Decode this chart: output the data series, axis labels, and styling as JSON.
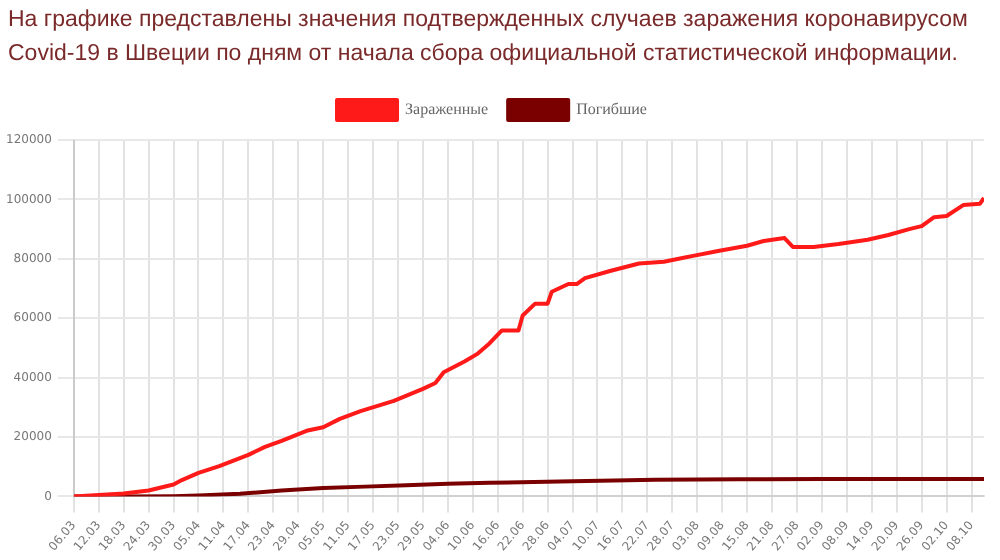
{
  "chart_data": {
    "type": "line",
    "title": "На графике представлены значения подтвержденных случаев заражения коронавирусом Covid-19 в Швеции по дням от начала сбора официальной статистической информации.",
    "series": [
      {
        "name": "Зараженные",
        "color": "#ff1a1a",
        "x": [
          "--03-06",
          "--03-12",
          "--03-18",
          "--03-24",
          "--03-30",
          "--04-01",
          "--04-05",
          "--04-10",
          "--04-17",
          "--04-21",
          "--04-25",
          "--05-01",
          "--05-05",
          "--05-09",
          "--05-14",
          "--05-22",
          "--05-29",
          "--06-01",
          "--06-03",
          "--06-08",
          "--06-11",
          "--06-14",
          "--06-17",
          "--06-21",
          "--06-22",
          "--06-25",
          "--06-28",
          "--06-29",
          "--07-03",
          "--07-05",
          "--07-07",
          "--07-13",
          "--07-20",
          "--07-26",
          "--08-02",
          "--08-08",
          "--08-15",
          "--08-19",
          "--08-24",
          "--08-26",
          "--08-31",
          "--09-06",
          "--09-13",
          "--09-18",
          "--09-23",
          "--09-26",
          "--09-29",
          "--10-02",
          "--10-06",
          "--10-10",
          "--10-11"
        ],
        "values": [
          0,
          500,
          1000,
          2000,
          4000,
          5500,
          7900,
          10200,
          14000,
          16700,
          18700,
          22100,
          23300,
          26100,
          28700,
          32200,
          36200,
          38200,
          41800,
          45400,
          47900,
          51500,
          55900,
          55900,
          60900,
          64900,
          64900,
          68900,
          71500,
          71500,
          73500,
          75900,
          78400,
          79000,
          81000,
          82600,
          84400,
          86000,
          87000,
          84000,
          84000,
          85000,
          86400,
          88000,
          90000,
          91000,
          94000,
          94400,
          98100,
          98500,
          100500
        ]
      },
      {
        "name": "Погибшие",
        "color": "#7a0000",
        "x": [
          "--03-06",
          "--03-18",
          "--03-30",
          "--04-05",
          "--04-15",
          "--04-25",
          "--05-05",
          "--05-15",
          "--05-25",
          "--06-04",
          "--06-14",
          "--07-04",
          "--07-24",
          "--08-13",
          "--09-02",
          "--09-22",
          "--10-11"
        ],
        "values": [
          0,
          10,
          100,
          300,
          900,
          2000,
          2800,
          3300,
          3800,
          4300,
          4600,
          5100,
          5600,
          5800,
          5850,
          5890,
          5900
        ]
      }
    ],
    "xlim": [
      "--03-06",
      "--10-11"
    ],
    "xticks": [
      {
        "value": "--03-06",
        "label": "06.03"
      },
      {
        "value": "--03-12",
        "label": "12.03"
      },
      {
        "value": "--03-18",
        "label": "18.03"
      },
      {
        "value": "--03-24",
        "label": "24.03"
      },
      {
        "value": "--03-30",
        "label": "30.03"
      },
      {
        "value": "--04-05",
        "label": "05.04"
      },
      {
        "value": "--04-11",
        "label": "11.04"
      },
      {
        "value": "--04-17",
        "label": "17.04"
      },
      {
        "value": "--04-23",
        "label": "23.04"
      },
      {
        "value": "--04-29",
        "label": "29.04"
      },
      {
        "value": "--05-05",
        "label": "05.05"
      },
      {
        "value": "--05-11",
        "label": "11.05"
      },
      {
        "value": "--05-17",
        "label": "17.05"
      },
      {
        "value": "--05-23",
        "label": "23.05"
      },
      {
        "value": "--05-29",
        "label": "29.05"
      },
      {
        "value": "--06-04",
        "label": "04.06"
      },
      {
        "value": "--06-10",
        "label": "10.06"
      },
      {
        "value": "--06-16",
        "label": "16.06"
      },
      {
        "value": "--06-22",
        "label": "22.06"
      },
      {
        "value": "--06-28",
        "label": "28.06"
      },
      {
        "value": "--07-04",
        "label": "04.07"
      },
      {
        "value": "--07-10",
        "label": "10.07"
      },
      {
        "value": "--07-16",
        "label": "16.07"
      },
      {
        "value": "--07-22",
        "label": "22.07"
      },
      {
        "value": "--07-28",
        "label": "28.07"
      },
      {
        "value": "--08-03",
        "label": "03.08"
      },
      {
        "value": "--08-09",
        "label": "09.08"
      },
      {
        "value": "--08-15",
        "label": "15.08"
      },
      {
        "value": "--08-21",
        "label": "21.08"
      },
      {
        "value": "--08-27",
        "label": "27.08"
      },
      {
        "value": "--09-02",
        "label": "02.09"
      },
      {
        "value": "--09-08",
        "label": "08.09"
      },
      {
        "value": "--09-14",
        "label": "14.09"
      },
      {
        "value": "--09-20",
        "label": "20.09"
      },
      {
        "value": "--09-26",
        "label": "26.09"
      },
      {
        "value": "--10-02",
        "label": "02.10"
      },
      {
        "value": "--10-08",
        "label": "08.10"
      }
    ],
    "ylim": [
      0,
      120000
    ],
    "yticks": [
      0,
      20000,
      40000,
      60000,
      80000,
      100000,
      120000
    ],
    "grid": true,
    "legend": "top",
    "marker": "none",
    "line_style": "solid"
  }
}
